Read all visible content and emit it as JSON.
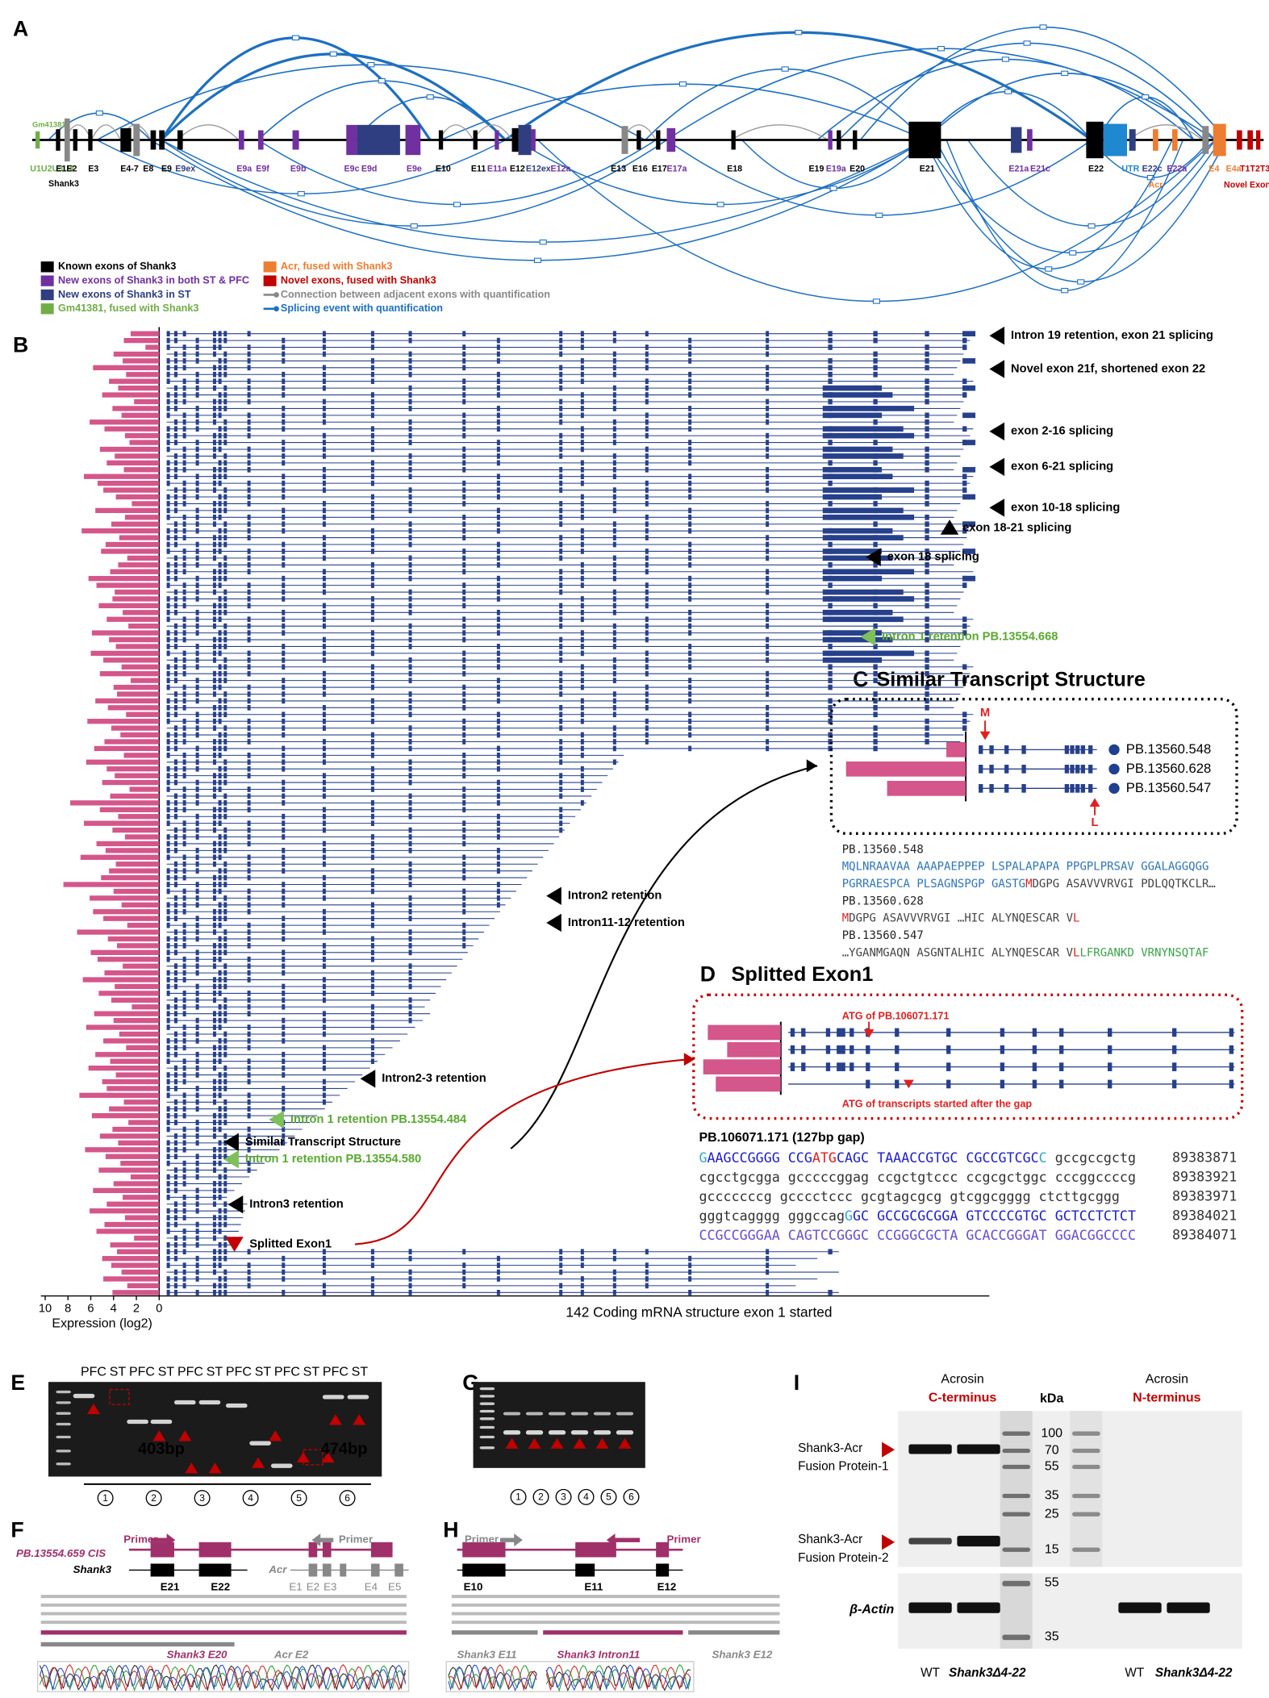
{
  "panels": {
    "a": "A",
    "b": "B",
    "c": "C",
    "d": "D",
    "e": "E",
    "f": "F",
    "g": "G",
    "h": "H",
    "i": "I"
  },
  "gene_map": {
    "labels": [
      {
        "text": "Gm41381",
        "color": "#70ad47"
      },
      {
        "text": "U1U2U3U4",
        "color": "#70ad47"
      },
      {
        "text": "E1E2",
        "color": "#000000"
      },
      {
        "text": "E3",
        "color": "#000000"
      },
      {
        "text": "Shank3",
        "color": "#000000"
      },
      {
        "text": "E4-7",
        "color": "#000000"
      },
      {
        "text": "E8",
        "color": "#000000"
      },
      {
        "text": "E9",
        "color": "#000000"
      },
      {
        "text": "E9ex",
        "color": "#2f3e80"
      },
      {
        "text": "E9a",
        "color": "#7030a0"
      },
      {
        "text": "E9f",
        "color": "#7030a0"
      },
      {
        "text": "E9b",
        "color": "#7030a0"
      },
      {
        "text": "E9c",
        "color": "#7030a0"
      },
      {
        "text": "E9d",
        "color": "#7030a0"
      },
      {
        "text": "E9e",
        "color": "#7030a0"
      },
      {
        "text": "E10",
        "color": "#000000"
      },
      {
        "text": "E11",
        "color": "#000000"
      },
      {
        "text": "E11a",
        "color": "#7030a0"
      },
      {
        "text": "E12",
        "color": "#000000"
      },
      {
        "text": "E12ex",
        "color": "#2f3e80"
      },
      {
        "text": "E12a",
        "color": "#7030a0"
      },
      {
        "text": "E13",
        "color": "#000000"
      },
      {
        "text": "E16",
        "color": "#000000"
      },
      {
        "text": "E17",
        "color": "#000000"
      },
      {
        "text": "E17a",
        "color": "#7030a0"
      },
      {
        "text": "E18",
        "color": "#000000"
      },
      {
        "text": "E19",
        "color": "#000000"
      },
      {
        "text": "E19a",
        "color": "#7030a0"
      },
      {
        "text": "E20",
        "color": "#000000"
      },
      {
        "text": "E21",
        "color": "#000000"
      },
      {
        "text": "E21a",
        "color": "#7030a0"
      },
      {
        "text": "E21c",
        "color": "#7030a0"
      },
      {
        "text": "E22",
        "color": "#000000"
      },
      {
        "text": "UTR",
        "color": "#1e88d0"
      },
      {
        "text": "E22c",
        "color": "#2f3e80"
      },
      {
        "text": "E22a",
        "color": "#7030a0"
      },
      {
        "text": "Acr",
        "color": "#ed7d31"
      },
      {
        "text": "E4",
        "color": "#ed7d31"
      },
      {
        "text": "E4a",
        "color": "#ed7d31"
      },
      {
        "text": "T1T2T3",
        "color": "#c00000"
      },
      {
        "text": "Novel Exons",
        "color": "#c00000"
      }
    ],
    "legend": [
      {
        "text": "Known exons of Shank3",
        "color": "#000000",
        "marker": "box"
      },
      {
        "text": "New exons of Shank3 in both ST & PFC",
        "color": "#7030a0",
        "marker": "box"
      },
      {
        "text": "New exons of Shank3 in ST",
        "color": "#2f3e80",
        "marker": "box"
      },
      {
        "text": "Gm41381, fused with Shank3",
        "color": "#70ad47",
        "marker": "box"
      },
      {
        "text": "Acr, fused with Shank3",
        "color": "#ed7d31",
        "marker": "box"
      },
      {
        "text": "Novel exons, fused with Shank3",
        "color": "#c00000",
        "marker": "box"
      },
      {
        "text": "Connection between adjacent exons with quantification",
        "color": "#888888",
        "marker": "line"
      },
      {
        "text": "Splicing event with quantification",
        "color": "#1e6fc0",
        "marker": "line"
      }
    ]
  },
  "transcripts": {
    "expression": [
      2.5,
      3.1,
      1.2,
      4.0,
      3.2,
      5.8,
      2.9,
      4.4,
      3.6,
      5.0,
      2.2,
      4.1,
      3.3,
      6.1,
      4.8,
      3.0,
      2.6,
      5.2,
      3.9,
      4.6,
      3.1,
      6.6,
      5.4,
      4.9,
      3.8,
      2.4,
      5.6,
      3.0,
      4.2,
      6.8,
      3.5,
      4.7,
      5.1,
      2.8,
      3.6,
      4.3,
      6.2,
      5.5,
      3.9,
      4.1,
      5.3,
      3.2,
      4.6,
      2.7,
      5.9,
      4.4,
      3.8,
      6.0,
      4.9,
      3.3,
      5.2,
      2.5,
      4.0,
      3.7,
      5.6,
      4.5,
      2.9,
      6.3,
      4.2,
      3.4,
      4.8,
      5.7,
      3.1,
      6.4,
      4.6,
      3.9,
      5.0,
      2.6,
      4.3,
      7.8,
      5.2,
      3.6,
      6.6,
      4.1,
      3.0,
      5.5,
      4.7,
      6.9,
      3.8,
      4.4,
      5.1,
      8.4,
      4.0,
      6.1,
      3.3,
      5.8,
      4.9,
      2.8,
      7.2,
      4.5,
      3.7,
      6.0,
      5.4,
      3.2,
      4.8,
      6.7,
      3.9,
      5.3,
      4.2,
      2.4,
      5.7,
      4.0,
      6.4,
      3.5,
      4.9,
      2.9,
      5.6,
      4.3,
      6.2,
      3.8,
      5.0,
      4.6,
      7.0,
      3.1,
      4.4,
      5.9,
      2.7,
      4.1,
      5.2,
      3.6,
      6.5,
      4.7,
      3.4,
      5.3,
      2.5,
      4.0,
      5.8,
      3.2,
      4.6,
      6.1,
      3.0,
      4.8,
      5.5,
      2.2,
      4.3,
      3.7,
      5.0,
      4.2,
      3.3,
      4.9,
      2.8,
      4.1
    ],
    "bar_color": "#d4568a",
    "line_color": "#27408b",
    "xlim": [
      10,
      0
    ],
    "xticks": [
      10,
      8,
      6,
      4,
      2,
      0
    ],
    "x_label": "Expression (log2)",
    "caption": "142 Coding mRNA structure exon 1 started",
    "annotations": [
      {
        "text": "Intron 19 retention, exon 21 splicing",
        "color": "#000000",
        "marker": "left",
        "marker_color": "#000000"
      },
      {
        "text": "Novel exon 21f, shortened exon 22",
        "color": "#000000",
        "marker": "left",
        "marker_color": "#000000"
      },
      {
        "text": "exon 2-16 splicing",
        "color": "#000000",
        "marker": "left",
        "marker_color": "#000000"
      },
      {
        "text": "exon 6-21 splicing",
        "color": "#000000",
        "marker": "left",
        "marker_color": "#000000"
      },
      {
        "text": "exon 10-18 splicing",
        "color": "#000000",
        "marker": "left",
        "marker_color": "#000000"
      },
      {
        "text": "exon 18-21 splicing",
        "color": "#000000",
        "marker": "up",
        "marker_color": "#000000"
      },
      {
        "text": "exon 18 splicing",
        "color": "#000000",
        "marker": "left",
        "marker_color": "#000000"
      },
      {
        "text": "Intron 1 retention PB.13554.668",
        "color": "#5aa832",
        "marker": "left",
        "marker_color": "#7cc05a"
      },
      {
        "text": "Intron2 retention",
        "color": "#000000",
        "marker": "left",
        "marker_color": "#000000"
      },
      {
        "text": "Intron11-12 retention",
        "color": "#000000",
        "marker": "left",
        "marker_color": "#000000"
      },
      {
        "text": "Intron2-3 retention",
        "color": "#000000",
        "marker": "left",
        "marker_color": "#000000"
      },
      {
        "text": "Intron 1 retention PB.13554.484",
        "color": "#5aa832",
        "marker": "left",
        "marker_color": "#7cc05a"
      },
      {
        "text": "Similar Transcript Structure",
        "color": "#000000",
        "marker": "left",
        "marker_color": "#000000"
      },
      {
        "text": "Intron 1 retention PB.13554.580",
        "color": "#5aa832",
        "marker": "left",
        "marker_color": "#7cc05a"
      },
      {
        "text": "Intron3 retention",
        "color": "#000000",
        "marker": "left",
        "marker_color": "#000000"
      },
      {
        "text": "Splitted Exon1",
        "color": "#000000",
        "marker": "down",
        "marker_color": "#c00000"
      }
    ]
  },
  "similar": {
    "title": "Similar Transcript Structure",
    "transcripts": [
      "PB.13560.548",
      "PB.13560.628",
      "PB.13560.547"
    ],
    "expression": [
      1.7,
      10.5,
      6.9
    ],
    "start_mark": "M",
    "stop_mark": "L",
    "sequence": [
      [
        {
          "text": "PB.13560.548",
          "color": "#222222"
        }
      ],
      [
        {
          "text": "MQLNRAAVAA AAAPAEPPEP LSPALAPAPA PPGPLPRSAV GGALAGGQGG",
          "color": "#2e75b6"
        }
      ],
      [
        {
          "text": "PGRRAESPCA PLSAGNSPGP GASTG",
          "color": "#2e75b6"
        },
        {
          "text": "M",
          "color": "#e02020"
        },
        {
          "text": "DGPG ASAVVVRVGI PDLQQTKCLR…",
          "color": "#444444"
        }
      ],
      [
        {
          "text": "PB.13560.628",
          "color": "#222222"
        }
      ],
      [
        {
          "text": "M",
          "color": "#e02020"
        },
        {
          "text": "DGPG ASAVVVRVGI …HIC ALYNQESCAR V",
          "color": "#444444"
        },
        {
          "text": "L",
          "color": "#e02020"
        }
      ],
      [
        {
          "text": "PB.13560.547",
          "color": "#222222"
        }
      ],
      [
        {
          "text": "…YGANMGAQN ASGNTALHIC ALYNQESCAR V",
          "color": "#444444"
        },
        {
          "text": "L",
          "color": "#e02020"
        },
        {
          "text": "LFRGANKD VRNYNSQTAF",
          "color": "#3aa34a"
        }
      ]
    ]
  },
  "splitted": {
    "title": "Splitted Exon1",
    "atg_top": "ATG of PB.106071.171",
    "atg_bottom": "ATG of transcripts started after the gap",
    "expression": [
      6.4,
      4.7,
      6.8,
      5.7
    ],
    "header": "PB.106071.171 (127bp gap)",
    "sequence": [
      {
        "segments": [
          {
            "text": "G",
            "color": "#33aacc"
          },
          {
            "text": "AAGCCGGGG CCG",
            "color": "#1f1fcc"
          },
          {
            "text": "ATG",
            "color": "#e02020"
          },
          {
            "text": "CAGC TAAACCGTGC CGCCGTCGC",
            "color": "#1f1fcc"
          },
          {
            "text": "C",
            "color": "#33aacc"
          },
          {
            "text": " gccgccgctg",
            "color": "#333333"
          }
        ],
        "position": 89383871
      },
      {
        "segments": [
          {
            "text": "cgcctgcgga gcccccggag ccgctgtccc ccgcgctggc cccggccccg",
            "color": "#333333"
          }
        ],
        "position": 89383921
      },
      {
        "segments": [
          {
            "text": "gcccccccg gcccctccc gcgtagcgcg gtcggcgggg ctcttgcggg",
            "color": "#333333"
          }
        ],
        "position": 89383971
      },
      {
        "segments": [
          {
            "text": "gggtcagggg gggccag",
            "color": "#333333"
          },
          {
            "text": "G",
            "color": "#33aacc"
          },
          {
            "text": "GC GCCGCGCGGA GTCCCCGTGC GCTCCTCTCT",
            "color": "#1f1fcc"
          }
        ],
        "position": 89384021
      },
      {
        "segments": [
          {
            "text": "CCGCCGGGAA CAGTCCGGGC CCGGGCGCTA GCACCGGGAT GGACGGCCCC",
            "color": "#6a4fd0"
          }
        ],
        "position": 89384071
      }
    ]
  },
  "gel_e": {
    "lanes": [
      "PFC",
      "ST",
      "PFC",
      "ST",
      "PFC",
      "ST",
      "PFC",
      "ST",
      "PFC",
      "ST",
      "PFC",
      "ST"
    ],
    "sizes": [
      "403bp",
      "474bp"
    ],
    "groups": [
      "1",
      "2",
      "3",
      "4",
      "5",
      "6"
    ]
  },
  "seq_f": {
    "primer_left": "Primer",
    "primer_right": "Primer",
    "transcript": "PB.13554.659 CIS",
    "gene1": "Shank3",
    "gene2": "Acr",
    "exons": [
      "E21",
      "E22",
      "E1",
      "E2",
      "E3",
      "E4",
      "E5"
    ],
    "trace_left": "Shank3 E20",
    "trace_right": "Acr E2"
  },
  "gel_g": {
    "groups": [
      "1",
      "2",
      "3",
      "4",
      "5",
      "6"
    ]
  },
  "seq_h": {
    "primer_left": "Primer",
    "primer_right": "Primer",
    "exons": [
      "E10",
      "E11",
      "E12"
    ],
    "trace_left": "Shank3 E11",
    "trace_mid": "Shank3 Intron11",
    "trace_right": "Shank3 E12"
  },
  "blot_i": {
    "antibody_left": "Acrosin",
    "epitope_left": "C-terminus",
    "antibody_right": "Acrosin",
    "epitope_right": "N-terminus",
    "kda_label": "kDa",
    "kda": [
      "100",
      "70",
      "55",
      "35",
      "25",
      "15"
    ],
    "kda_actin": [
      "55",
      "35"
    ],
    "band1": [
      "Shank3-Acr",
      "Fusion Protein-1"
    ],
    "band2": [
      "Shank3-Acr",
      "Fusion Protein-2"
    ],
    "loading": "β-Actin",
    "samples": [
      "WT",
      "Shank3Δ4-22",
      "WT",
      "Shank3Δ4-22"
    ]
  }
}
